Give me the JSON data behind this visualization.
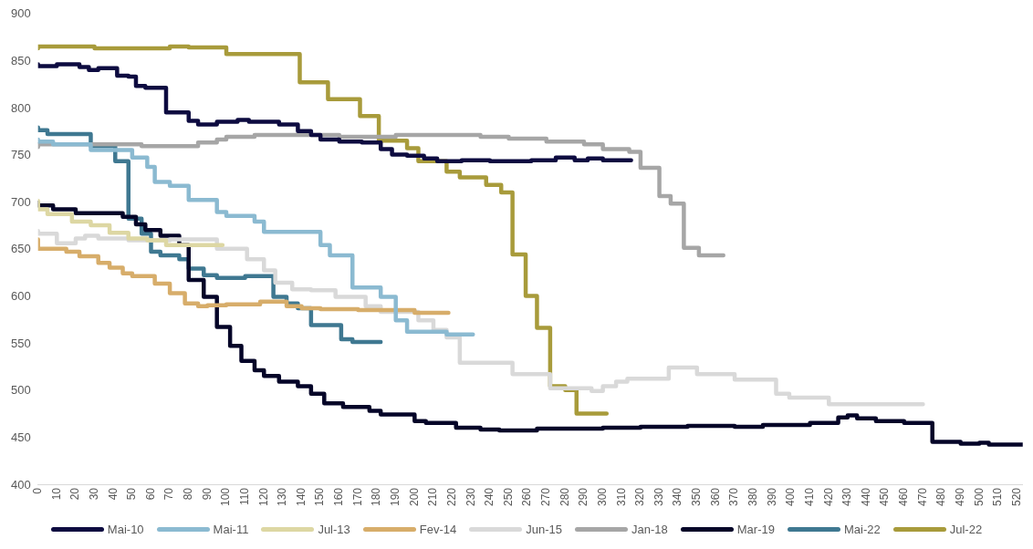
{
  "chart_data": {
    "type": "step",
    "legend": "bottom",
    "xlim": [
      0,
      523
    ],
    "ylim": [
      400,
      900
    ],
    "xticks": [
      0,
      10,
      20,
      30,
      40,
      50,
      60,
      70,
      80,
      90,
      100,
      110,
      120,
      130,
      140,
      150,
      160,
      170,
      180,
      190,
      200,
      210,
      220,
      230,
      240,
      250,
      260,
      270,
      280,
      290,
      300,
      310,
      320,
      330,
      340,
      350,
      360,
      370,
      380,
      390,
      400,
      410,
      420,
      430,
      440,
      450,
      460,
      470,
      480,
      490,
      500,
      510,
      520
    ],
    "yticks": [
      400,
      450,
      500,
      550,
      600,
      650,
      700,
      750,
      800,
      850,
      900
    ],
    "series": [
      {
        "name": "Mai-10",
        "color": "#0d0b40",
        "x": [
          0,
          10,
          22,
          27,
          32,
          42,
          48,
          52,
          57,
          68,
          80,
          85,
          95,
          106,
          112,
          128,
          138,
          145,
          150,
          160,
          172,
          182,
          188,
          196,
          205,
          212,
          225,
          240,
          262,
          275,
          285,
          292,
          300,
          306,
          315
        ],
        "values": [
          847,
          845,
          847,
          844,
          841,
          843,
          835,
          834,
          824,
          822,
          796,
          787,
          783,
          786,
          788,
          786,
          783,
          776,
          772,
          767,
          765,
          764,
          757,
          751,
          750,
          747,
          744,
          745,
          744,
          745,
          748,
          745,
          747,
          745,
          745
        ]
      },
      {
        "name": "Mai-11",
        "color": "#8bbad1",
        "x": [
          0,
          8,
          28,
          50,
          58,
          62,
          70,
          80,
          95,
          100,
          115,
          120,
          150,
          155,
          167,
          182,
          190,
          196,
          217,
          231
        ],
        "values": [
          767,
          765,
          762,
          756,
          748,
          738,
          722,
          718,
          703,
          690,
          686,
          680,
          669,
          655,
          644,
          610,
          600,
          575,
          563,
          560
        ]
      },
      {
        "name": "Jul-13",
        "color": "#ddd7a3",
        "x": [
          0,
          5,
          18,
          28,
          38,
          48,
          58,
          68,
          85,
          98
        ],
        "values": [
          702,
          693,
          688,
          680,
          676,
          668,
          662,
          660,
          655,
          655
        ]
      },
      {
        "name": "Fev-14",
        "color": "#d7ad6a",
        "x": [
          0,
          15,
          22,
          32,
          38,
          45,
          50,
          62,
          70,
          78,
          85,
          90,
          100,
          118,
          132,
          140,
          150,
          170,
          200,
          212,
          218
        ],
        "values": [
          661,
          651,
          648,
          643,
          636,
          631,
          625,
          622,
          614,
          604,
          593,
          590,
          591,
          592,
          595,
          590,
          588,
          587,
          586,
          583,
          583
        ]
      },
      {
        "name": "Jun-15",
        "color": "#d9d9d9",
        "x": [
          0,
          10,
          20,
          25,
          32,
          48,
          70,
          95,
          111,
          120,
          126,
          135,
          145,
          158,
          174,
          182,
          202,
          210,
          217,
          224,
          252,
          272,
          294,
          300,
          307,
          313,
          335,
          350,
          370,
          392,
          399,
          420,
          434,
          470
        ],
        "values": [
          670,
          667,
          657,
          662,
          665,
          662,
          660,
          661,
          651,
          640,
          628,
          615,
          608,
          607,
          600,
          590,
          584,
          575,
          565,
          557,
          530,
          518,
          503,
          500,
          505,
          510,
          513,
          525,
          518,
          512,
          497,
          493,
          486,
          486
        ]
      },
      {
        "name": "Jan-18",
        "color": "#a6a6a6",
        "x": [
          0,
          55,
          85,
          95,
          100,
          115,
          160,
          190,
          235,
          250,
          270,
          290,
          300,
          314,
          320,
          330,
          336,
          343,
          351,
          357,
          364
        ],
        "values": [
          759,
          762,
          760,
          764,
          767,
          770,
          772,
          770,
          772,
          770,
          768,
          765,
          762,
          757,
          754,
          737,
          707,
          699,
          652,
          644,
          644
        ]
      },
      {
        "name": "Mar-19",
        "color": "#050528",
        "x": [
          0,
          8,
          20,
          45,
          52,
          57,
          65,
          75,
          80,
          88,
          95,
          102,
          108,
          115,
          120,
          128,
          138,
          145,
          152,
          162,
          176,
          182,
          200,
          206,
          222,
          235,
          245,
          265,
          300,
          320,
          345,
          370,
          385,
          410,
          425,
          430,
          435,
          445,
          460,
          475,
          490,
          500,
          505,
          510,
          523
        ],
        "values": [
          700,
          697,
          693,
          689,
          685,
          677,
          671,
          665,
          655,
          618,
          600,
          568,
          548,
          532,
          522,
          516,
          510,
          505,
          497,
          487,
          483,
          479,
          475,
          468,
          466,
          461,
          459,
          458,
          460,
          461,
          462,
          463,
          462,
          464,
          466,
          472,
          474,
          471,
          468,
          466,
          446,
          444,
          445,
          443,
          443
        ]
      },
      {
        "name": "Mai-22",
        "color": "#3f7891",
        "x": [
          0,
          5,
          28,
          41,
          48,
          55,
          60,
          65,
          75,
          80,
          88,
          95,
          110,
          125,
          132,
          138,
          145,
          161,
          167,
          175,
          182
        ],
        "values": [
          780,
          777,
          773,
          760,
          744,
          683,
          667,
          648,
          644,
          640,
          630,
          623,
          620,
          622,
          600,
          593,
          588,
          570,
          555,
          552,
          552
        ]
      },
      {
        "name": "Jul-22",
        "color": "#a89b3b",
        "x": [
          0,
          30,
          70,
          80,
          100,
          139,
          154,
          171,
          181,
          196,
          202,
          217,
          224,
          238,
          246,
          252,
          259,
          265,
          272,
          280,
          286,
          293,
          302
        ],
        "values": [
          864,
          866,
          864,
          866,
          865,
          858,
          828,
          810,
          792,
          766,
          758,
          744,
          733,
          727,
          719,
          711,
          645,
          601,
          567,
          505,
          501,
          476,
          476
        ]
      }
    ]
  }
}
